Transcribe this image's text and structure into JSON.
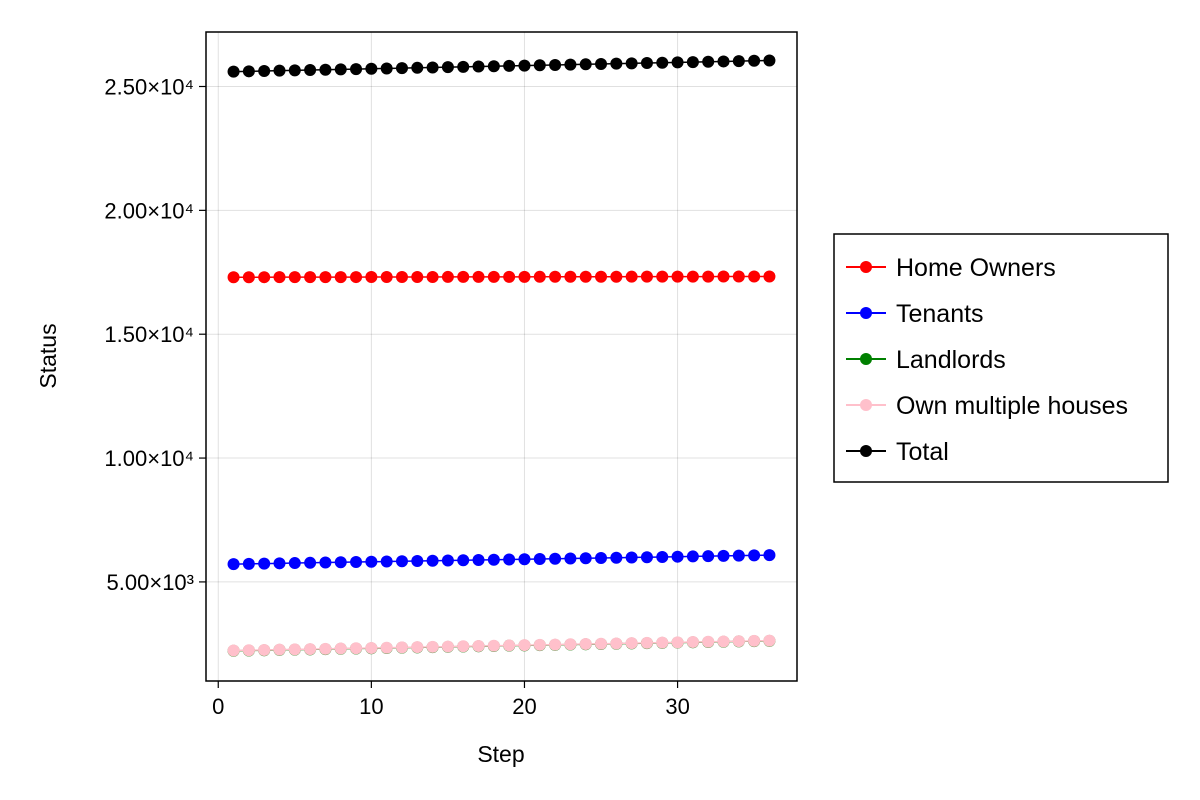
{
  "chart_data": {
    "type": "scatter",
    "title": "",
    "xlabel": "Step",
    "ylabel": "Status",
    "xlim": [
      -0.8,
      37.8
    ],
    "ylim": [
      1000,
      27200
    ],
    "grid": true,
    "legend_position": "right",
    "x_ticks": [
      {
        "value": 0,
        "label": "0"
      },
      {
        "value": 10,
        "label": "10"
      },
      {
        "value": 20,
        "label": "20"
      },
      {
        "value": 30,
        "label": "30"
      }
    ],
    "y_ticks": [
      {
        "value": 5000,
        "label": "5.00×10³"
      },
      {
        "value": 10000,
        "label": "1.00×10⁴"
      },
      {
        "value": 15000,
        "label": "1.50×10⁴"
      },
      {
        "value": 20000,
        "label": "2.00×10⁴"
      },
      {
        "value": 25000,
        "label": "2.50×10⁴"
      }
    ],
    "x": [
      1,
      36
    ],
    "n_points": 36,
    "series": [
      {
        "name": "Home Owners",
        "color": "#ff0000",
        "y_start": 17300,
        "y_end": 17330
      },
      {
        "name": "Tenants",
        "color": "#0000ff",
        "y_start": 5720,
        "y_end": 6080
      },
      {
        "name": "Landlords",
        "color": "#008000",
        "y_start": 2220,
        "y_end": 2620
      },
      {
        "name": "Own multiple houses",
        "color": "#ffc0cb",
        "y_start": 2230,
        "y_end": 2630
      },
      {
        "name": "Total",
        "color": "#000000",
        "y_start": 25600,
        "y_end": 26050
      }
    ]
  }
}
